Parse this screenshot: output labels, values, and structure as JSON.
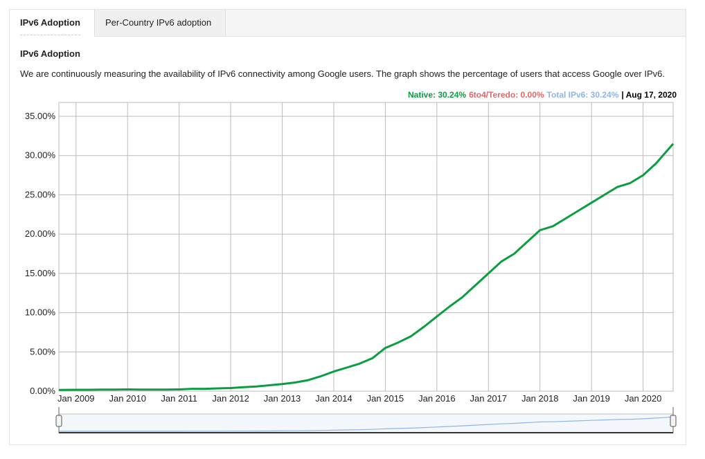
{
  "tabs": [
    "IPv6 Adoption",
    "Per-Country IPv6 adoption"
  ],
  "heading": "IPv6 Adoption",
  "description": "We are continuously measuring the availability of IPv6 connectivity among Google users. The graph shows the percentage of users that access Google over IPv6.",
  "legend": [
    {
      "text": "Native: 30.24%",
      "color": "#0a9e3f"
    },
    {
      "text": "6to4/Teredo: 0.00%",
      "color": "#e06666"
    },
    {
      "text": "Total IPv6: 30.24%",
      "color": "#8fb5e8"
    },
    {
      "text": "| Aug 17, 2020",
      "color": "#000000"
    }
  ],
  "chart_data": {
    "type": "line",
    "x": [
      "2008-09",
      "2009-01",
      "2009-04",
      "2009-07",
      "2009-10",
      "2010-01",
      "2010-04",
      "2010-07",
      "2010-10",
      "2011-01",
      "2011-04",
      "2011-07",
      "2011-10",
      "2012-01",
      "2012-04",
      "2012-07",
      "2012-10",
      "2013-01",
      "2013-04",
      "2013-07",
      "2013-10",
      "2014-01",
      "2014-04",
      "2014-07",
      "2014-10",
      "2015-01",
      "2015-04",
      "2015-07",
      "2015-10",
      "2016-01",
      "2016-04",
      "2016-07",
      "2016-10",
      "2017-01",
      "2017-04",
      "2017-07",
      "2017-10",
      "2018-01",
      "2018-04",
      "2018-07",
      "2018-10",
      "2019-01",
      "2019-04",
      "2019-07",
      "2019-10",
      "2020-01",
      "2020-04",
      "2020-08"
    ],
    "series": [
      {
        "name": "Native",
        "color": "#0a9e3f",
        "values": [
          0.15,
          0.18,
          0.18,
          0.2,
          0.2,
          0.22,
          0.2,
          0.2,
          0.2,
          0.22,
          0.3,
          0.3,
          0.35,
          0.4,
          0.5,
          0.6,
          0.75,
          0.9,
          1.1,
          1.4,
          1.9,
          2.5,
          3.0,
          3.5,
          4.2,
          5.5,
          6.2,
          7.0,
          8.2,
          9.5,
          10.8,
          12.0,
          13.5,
          15.0,
          16.5,
          17.5,
          19.0,
          20.5,
          21.0,
          22.0,
          23.0,
          24.0,
          25.0,
          26.0,
          26.5,
          27.5,
          29.0,
          31.5
        ]
      }
    ],
    "xlim": [
      "2008-09",
      "2020-08"
    ],
    "xticks": [
      {
        "value": "2009-01",
        "label": "Jan 2009"
      },
      {
        "value": "2010-01",
        "label": "Jan 2010"
      },
      {
        "value": "2011-01",
        "label": "Jan 2011"
      },
      {
        "value": "2012-01",
        "label": "Jan 2012"
      },
      {
        "value": "2013-01",
        "label": "Jan 2013"
      },
      {
        "value": "2014-01",
        "label": "Jan 2014"
      },
      {
        "value": "2015-01",
        "label": "Jan 2015"
      },
      {
        "value": "2016-01",
        "label": "Jan 2016"
      },
      {
        "value": "2017-01",
        "label": "Jan 2017"
      },
      {
        "value": "2018-01",
        "label": "Jan 2018"
      },
      {
        "value": "2019-01",
        "label": "Jan 2019"
      },
      {
        "value": "2020-01",
        "label": "Jan 2020"
      }
    ],
    "ylim": [
      0,
      35
    ],
    "yticks": [
      {
        "value": 0,
        "label": "0.00%"
      },
      {
        "value": 5,
        "label": "5.00%"
      },
      {
        "value": 10,
        "label": "10.00%"
      },
      {
        "value": 15,
        "label": "15.00%"
      },
      {
        "value": 20,
        "label": "20.00%"
      },
      {
        "value": 25,
        "label": "25.00%"
      },
      {
        "value": 30,
        "label": "30.00%"
      },
      {
        "value": 35,
        "label": "35.00%"
      }
    ],
    "grid": true
  }
}
